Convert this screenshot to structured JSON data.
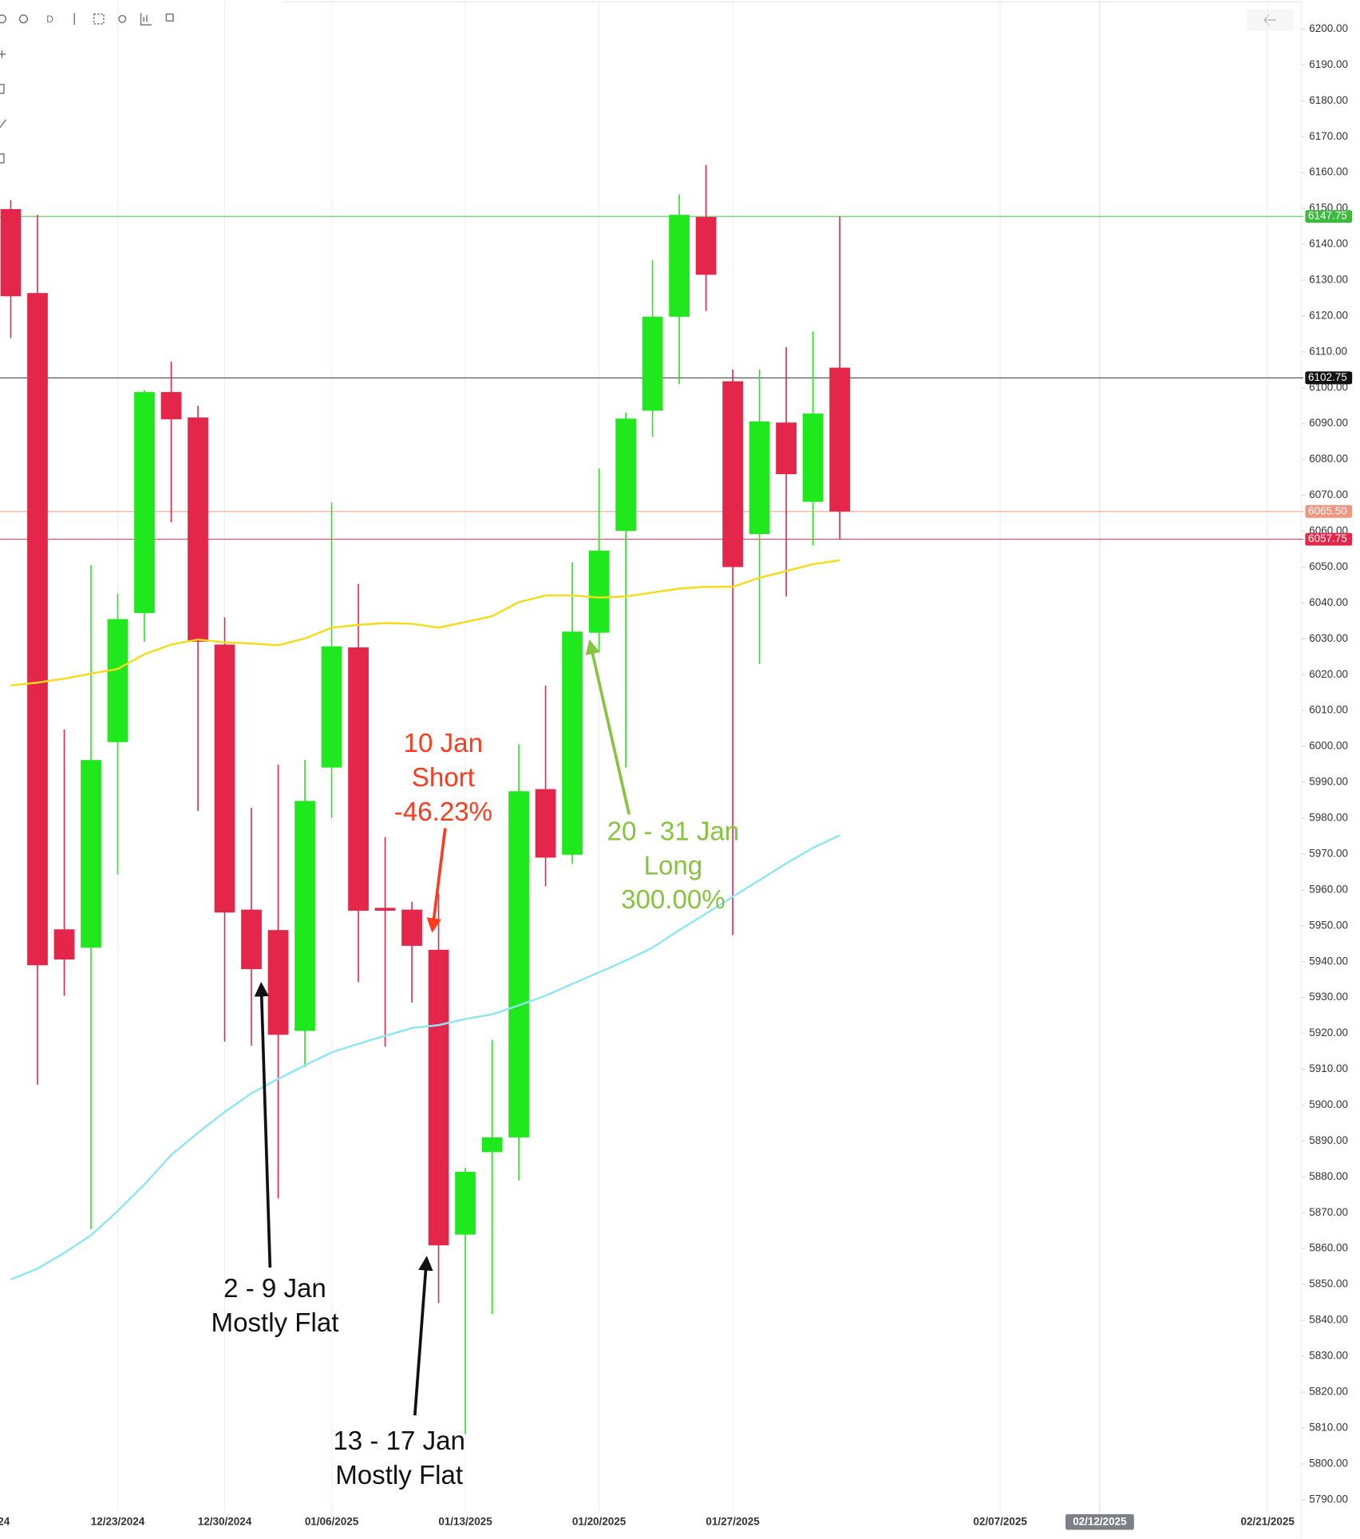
{
  "toolbar": {
    "interval": "D"
  },
  "chart_data": {
    "type": "candlestick",
    "edge_label": "24",
    "crosshair_label": "02/12/2025",
    "categories": [
      null,
      null,
      null,
      null,
      "12/23/2024",
      null,
      null,
      null,
      "12/30/2024",
      null,
      null,
      null,
      "01/06/2025",
      null,
      null,
      null,
      null,
      "01/13/2025",
      null,
      null,
      null,
      null,
      "01/20/2025",
      null,
      null,
      null,
      null,
      "01/27/2025",
      null,
      null,
      null,
      null,
      null,
      null,
      null,
      null,
      null,
      "02/07/2025",
      null,
      null,
      null,
      null,
      null,
      null,
      null,
      null,
      null,
      "02/21/2025"
    ],
    "open": [
      6149.8,
      6126.4,
      5949.0,
      5943.9,
      6001.2,
      6037.2,
      6098.8,
      6091.7,
      6028.4,
      5954.5,
      5948.8,
      5920.7,
      5994.1,
      6027.6,
      5955.0,
      5954.5,
      5943.3,
      5863.9,
      5886.9,
      5891.0,
      5988.1,
      5969.8,
      6031.7,
      6060.1,
      6093.6,
      6119.8,
      6147.6,
      6101.8,
      6059.2,
      6090.3,
      6068.2,
      6105.6,
      null,
      null,
      null,
      null,
      null,
      null,
      null,
      null,
      null,
      null,
      null,
      null,
      null,
      null,
      null,
      null
    ],
    "high": [
      6152.3,
      6148.2,
      6004.7,
      6050.5,
      6042.6,
      6099.3,
      6107.3,
      6095.0,
      6036.0,
      5982.9,
      5994.9,
      5996.2,
      6068.0,
      6045.3,
      5974.7,
      5956.7,
      5958.9,
      5882.5,
      5918.2,
      6000.6,
      6017.0,
      6051.3,
      6077.5,
      6093.1,
      6135.6,
      6153.9,
      6162.1,
      6105.1,
      6105.1,
      6111.3,
      6115.7,
      6147.75,
      null,
      null,
      null,
      null,
      null,
      null,
      null,
      null,
      null,
      null,
      null,
      null,
      null,
      null,
      null,
      null
    ],
    "low": [
      6113.8,
      5905.7,
      5930.5,
      5865.4,
      5964.3,
      6029.2,
      6062.5,
      5982.0,
      5917.7,
      5916.6,
      5874.0,
      5910.6,
      5980.0,
      5934.3,
      5916.3,
      5928.6,
      5844.8,
      5808.3,
      5841.8,
      5879.0,
      5961.0,
      5967.3,
      6026.2,
      5994.1,
      6086.3,
      6101.0,
      6121.4,
      5947.4,
      6023.0,
      6041.8,
      6056.0,
      6057.75,
      null,
      null,
      null,
      null,
      null,
      null,
      null,
      null,
      null,
      null,
      null,
      null,
      null,
      null,
      null,
      null
    ],
    "close": [
      6125.5,
      5939.0,
      5940.6,
      5996.2,
      6035.5,
      6098.8,
      6091.2,
      6029.2,
      5953.7,
      5937.9,
      5919.6,
      5984.8,
      6027.9,
      5954.2,
      5954.2,
      5944.4,
      5860.9,
      5881.4,
      5891.0,
      5987.5,
      5969.0,
      6032.0,
      6054.6,
      6091.4,
      6119.8,
      6148.2,
      6131.5,
      6050.0,
      6090.6,
      6075.9,
      6092.8,
      6065.5,
      null,
      null,
      null,
      null,
      null,
      null,
      null,
      null,
      null,
      null,
      null,
      null,
      null,
      null,
      null,
      null
    ],
    "up_color": "#1fe81c",
    "down_color": "#e3264a",
    "overlays": [
      {
        "color": "#f5dc1a",
        "values": [
          6017.0,
          6017.8,
          6018.9,
          6020.3,
          6021.6,
          6025.7,
          6028.4,
          6029.8,
          6029.0,
          6028.7,
          6028.2,
          6030.1,
          6033.1,
          6033.9,
          6034.4,
          6034.2,
          6033.1,
          6034.7,
          6036.3,
          6040.2,
          6042.1,
          6042.1,
          6041.5,
          6041.8,
          6042.9,
          6044.0,
          6044.5,
          6044.5,
          6047.0,
          6048.9,
          6050.8,
          6051.9,
          null,
          null,
          null,
          null,
          null,
          null,
          null,
          null,
          null,
          null,
          null,
          null,
          null,
          null,
          null,
          null
        ]
      },
      {
        "color": "#8ee6f2",
        "values": [
          5851.4,
          5854.4,
          5858.8,
          5863.7,
          5870.5,
          5877.9,
          5886.1,
          5892.3,
          5898.1,
          5903.3,
          5907.3,
          5911.1,
          5914.7,
          5917.1,
          5919.3,
          5921.5,
          5922.3,
          5924.0,
          5925.3,
          5927.8,
          5930.5,
          5933.8,
          5937.0,
          5940.3,
          5943.9,
          5948.8,
          5953.4,
          5958.1,
          5962.7,
          5967.4,
          5971.7,
          5975.2,
          null,
          null,
          null,
          null,
          null,
          null,
          null,
          null,
          null,
          null,
          null,
          null,
          null,
          null,
          null,
          null
        ]
      }
    ],
    "price_lines": [
      {
        "value": 6147.75,
        "label": "6147.75",
        "color": "#3dbb3d"
      },
      {
        "value": 6102.75,
        "label": "6102.75",
        "color": "#111111"
      },
      {
        "value": 6065.5,
        "label": "6065.50",
        "color": "#f2957f"
      },
      {
        "value": 6057.75,
        "label": "6057.75",
        "color": "#e3264a"
      }
    ],
    "annotations": [
      {
        "lines": [
          "10 Jan",
          "Short",
          "-46.23%"
        ],
        "color": "#ff3b1f"
      },
      {
        "lines": [
          "20 - 31 Jan",
          "Long",
          "300.00%"
        ],
        "color": "#86c440"
      },
      {
        "lines": [
          "2 - 9 Jan",
          "Mostly Flat"
        ],
        "color": "#111111"
      },
      {
        "lines": [
          "13 - 17 Jan",
          "Mostly Flat"
        ],
        "color": "#111111"
      }
    ],
    "ylim": [
      5786.5,
      6208
    ],
    "yticks": [
      {
        "value": 5790,
        "label": "5790.00"
      },
      {
        "value": 5800,
        "label": "5800.00"
      },
      {
        "value": 5810,
        "label": "5810.00"
      },
      {
        "value": 5820,
        "label": "5820.00"
      },
      {
        "value": 5830,
        "label": "5830.00"
      },
      {
        "value": 5840,
        "label": "5840.00"
      },
      {
        "value": 5850,
        "label": "5850.00"
      },
      {
        "value": 5860,
        "label": "5860.00"
      },
      {
        "value": 5870,
        "label": "5870.00"
      },
      {
        "value": 5880,
        "label": "5880.00"
      },
      {
        "value": 5890,
        "label": "5890.00"
      },
      {
        "value": 5900,
        "label": "5900.00"
      },
      {
        "value": 5910,
        "label": "5910.00"
      },
      {
        "value": 5920,
        "label": "5920.00"
      },
      {
        "value": 5930,
        "label": "5930.00"
      },
      {
        "value": 5940,
        "label": "5940.00"
      },
      {
        "value": 5950,
        "label": "5950.00"
      },
      {
        "value": 5960,
        "label": "5960.00"
      },
      {
        "value": 5970,
        "label": "5970.00"
      },
      {
        "value": 5980,
        "label": "5980.00"
      },
      {
        "value": 5990,
        "label": "5990.00"
      },
      {
        "value": 6000,
        "label": "6000.00"
      },
      {
        "value": 6010,
        "label": "6010.00"
      },
      {
        "value": 6020,
        "label": "6020.00"
      },
      {
        "value": 6030,
        "label": "6030.00"
      },
      {
        "value": 6040,
        "label": "6040.00"
      },
      {
        "value": 6050,
        "label": "6050.00"
      },
      {
        "value": 6060,
        "label": "6060.00"
      },
      {
        "value": 6070,
        "label": "6070.00"
      },
      {
        "value": 6080,
        "label": "6080.00"
      },
      {
        "value": 6090,
        "label": "6090.00"
      },
      {
        "value": 6100,
        "label": "6100.00"
      },
      {
        "value": 6110,
        "label": "6110.00"
      },
      {
        "value": 6120,
        "label": "6120.00"
      },
      {
        "value": 6130,
        "label": "6130.00"
      },
      {
        "value": 6140,
        "label": "6140.00"
      },
      {
        "value": 6150,
        "label": "6150.00"
      },
      {
        "value": 6160,
        "label": "6160.00"
      },
      {
        "value": 6170,
        "label": "6170.00"
      },
      {
        "value": 6180,
        "label": "6180.00"
      },
      {
        "value": 6190,
        "label": "6190.00"
      },
      {
        "value": 6200,
        "label": "6200.00"
      }
    ]
  }
}
